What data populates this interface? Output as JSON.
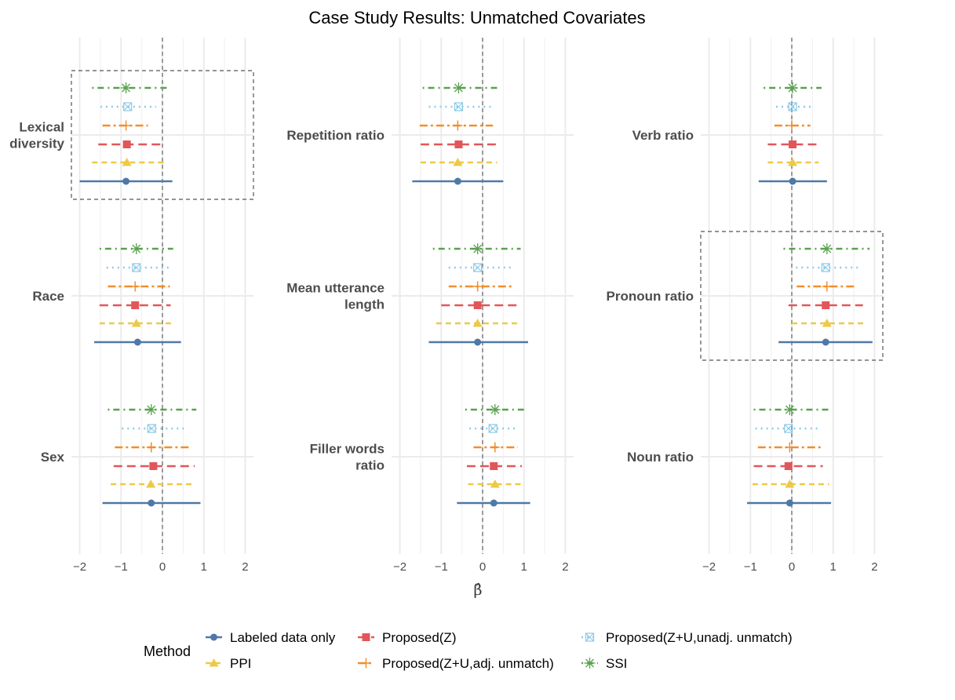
{
  "chart_data": {
    "type": "forest",
    "title": "Case Study Results: Unmatched Covariates",
    "xlabel": "β̂",
    "xlim": [
      -2.2,
      2.2
    ],
    "x_ticks": [
      -2,
      -1,
      0,
      1,
      2
    ],
    "x_tick_labels": [
      "−2",
      "−1",
      "0",
      "1",
      "2"
    ],
    "reference_line": 0,
    "grid": true,
    "legend": {
      "title": "Method",
      "position": "bottom"
    },
    "methods": [
      {
        "key": "labeled",
        "name": "Labeled data only",
        "color": "#4e79a7",
        "dash": "solid",
        "shape": "circle"
      },
      {
        "key": "ppi",
        "name": "PPI",
        "color": "#edc948",
        "dash": "dashed",
        "shape": "triangle"
      },
      {
        "key": "pz",
        "name": "Proposed(Z)",
        "color": "#e15759",
        "dash": "longdash",
        "shape": "square"
      },
      {
        "key": "pzu_adj",
        "name": "Proposed(Z+U,adj. unmatch)",
        "color": "#f28e2b",
        "dash": "twodash",
        "shape": "plus"
      },
      {
        "key": "pzu_unadj",
        "name": "Proposed(Z+U,unadj. unmatch)",
        "color": "#8ecae6",
        "dash": "dotted",
        "shape": "squarecross"
      },
      {
        "key": "ssi",
        "name": "SSI",
        "color": "#59a14f",
        "dash": "dotdash",
        "shape": "star"
      }
    ],
    "panels": [
      {
        "column": "col1",
        "covariates": [
          {
            "label": [
              "Lexical",
              "diversity"
            ],
            "highlight": true,
            "estimates": {
              "labeled": [
                -0.88,
                -2.0,
                0.24
              ],
              "ppi": [
                -0.86,
                -1.7,
                0.08
              ],
              "pz": [
                -0.86,
                -1.55,
                -0.05
              ],
              "pzu_adj": [
                -0.88,
                -1.45,
                -0.35
              ],
              "pzu_unadj": [
                -0.84,
                -1.5,
                -0.15
              ],
              "ssi": [
                -0.88,
                -1.7,
                0.12
              ]
            }
          },
          {
            "label": [
              "Race"
            ],
            "highlight": false,
            "estimates": {
              "labeled": [
                -0.6,
                -1.65,
                0.45
              ],
              "ppi": [
                -0.63,
                -1.52,
                0.27
              ],
              "pz": [
                -0.66,
                -1.52,
                0.2
              ],
              "pzu_adj": [
                -0.66,
                -1.32,
                0.18
              ],
              "pzu_unadj": [
                -0.63,
                -1.35,
                0.2
              ],
              "ssi": [
                -0.63,
                -1.52,
                0.26
              ]
            }
          },
          {
            "label": [
              "Sex"
            ],
            "highlight": false,
            "estimates": {
              "labeled": [
                -0.27,
                -1.45,
                0.92
              ],
              "ppi": [
                -0.28,
                -1.25,
                0.8
              ],
              "pz": [
                -0.22,
                -1.18,
                0.78
              ],
              "pzu_adj": [
                -0.27,
                -1.15,
                0.68
              ],
              "pzu_unadj": [
                -0.26,
                -0.98,
                0.58
              ],
              "ssi": [
                -0.27,
                -1.32,
                0.82
              ]
            }
          }
        ]
      },
      {
        "column": "col2",
        "covariates": [
          {
            "label": [
              "Repetition ratio"
            ],
            "highlight": false,
            "estimates": {
              "labeled": [
                -0.6,
                -1.7,
                0.5
              ],
              "ppi": [
                -0.6,
                -1.5,
                0.35
              ],
              "pz": [
                -0.58,
                -1.5,
                0.32
              ],
              "pzu_adj": [
                -0.6,
                -1.52,
                0.25
              ],
              "pzu_unadj": [
                -0.58,
                -1.3,
                0.25
              ],
              "ssi": [
                -0.58,
                -1.45,
                0.35
              ]
            }
          },
          {
            "label": [
              "Mean utterance",
              "length"
            ],
            "highlight": false,
            "estimates": {
              "labeled": [
                -0.12,
                -1.3,
                1.1
              ],
              "ppi": [
                -0.12,
                -1.12,
                0.88
              ],
              "pz": [
                -0.12,
                -1.0,
                0.82
              ],
              "pzu_adj": [
                -0.12,
                -0.82,
                0.72
              ],
              "pzu_unadj": [
                -0.12,
                -0.82,
                0.75
              ],
              "ssi": [
                -0.12,
                -1.2,
                0.92
              ]
            }
          },
          {
            "label": [
              "Filler words",
              "ratio"
            ],
            "highlight": false,
            "estimates": {
              "labeled": [
                0.27,
                -0.62,
                1.15
              ],
              "ppi": [
                0.3,
                -0.35,
                0.98
              ],
              "pz": [
                0.27,
                -0.38,
                0.95
              ],
              "pzu_adj": [
                0.3,
                -0.22,
                0.85
              ],
              "pzu_unadj": [
                0.25,
                -0.32,
                0.78
              ],
              "ssi": [
                0.3,
                -0.42,
                1.0
              ]
            }
          }
        ]
      },
      {
        "column": "col3",
        "covariates": [
          {
            "label": [
              "Verb ratio"
            ],
            "highlight": false,
            "estimates": {
              "labeled": [
                0.02,
                -0.8,
                0.85
              ],
              "ppi": [
                0.02,
                -0.58,
                0.65
              ],
              "pz": [
                0.02,
                -0.58,
                0.6
              ],
              "pzu_adj": [
                0.0,
                -0.42,
                0.45
              ],
              "pzu_unadj": [
                0.02,
                -0.38,
                0.55
              ],
              "ssi": [
                0.02,
                -0.68,
                0.72
              ]
            }
          },
          {
            "label": [
              "Pronoun ratio"
            ],
            "highlight": true,
            "estimates": {
              "labeled": [
                0.82,
                -0.32,
                1.95
              ],
              "ppi": [
                0.85,
                0.0,
                1.8
              ],
              "pz": [
                0.82,
                -0.08,
                1.72
              ],
              "pzu_adj": [
                0.85,
                0.12,
                1.58
              ],
              "pzu_unadj": [
                0.82,
                0.1,
                1.68
              ],
              "ssi": [
                0.85,
                -0.2,
                1.88
              ]
            }
          },
          {
            "label": [
              "Noun ratio"
            ],
            "highlight": false,
            "estimates": {
              "labeled": [
                -0.05,
                -1.08,
                0.95
              ],
              "ppi": [
                -0.05,
                -0.95,
                0.9
              ],
              "pz": [
                -0.08,
                -0.92,
                0.75
              ],
              "pzu_adj": [
                -0.05,
                -0.82,
                0.7
              ],
              "pzu_unadj": [
                -0.08,
                -0.88,
                0.68
              ],
              "ssi": [
                -0.05,
                -0.92,
                0.92
              ]
            }
          }
        ]
      }
    ]
  }
}
